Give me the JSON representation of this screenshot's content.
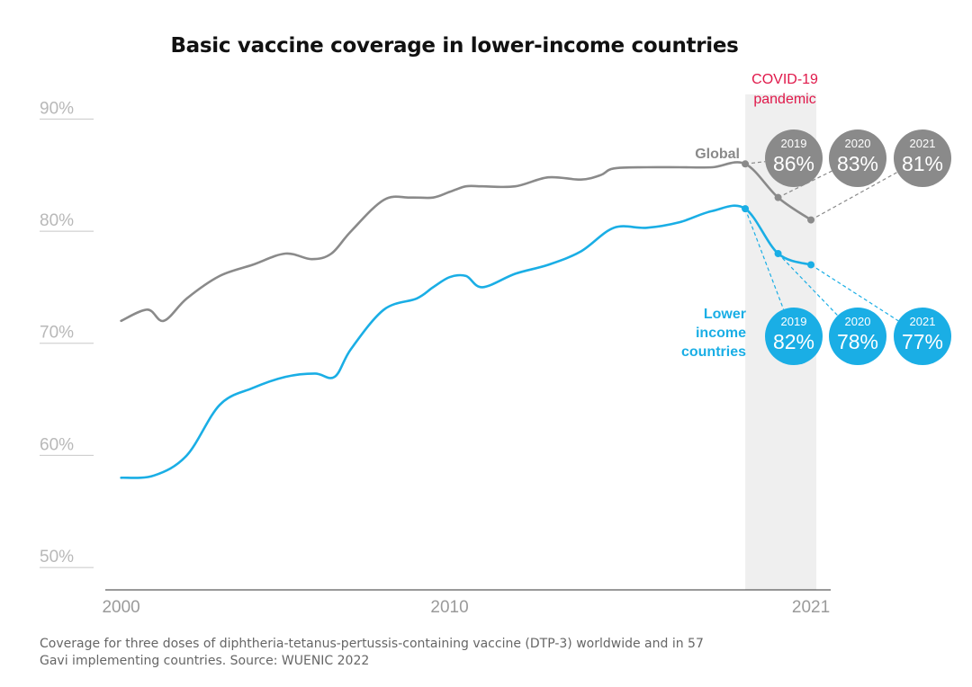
{
  "title": "Basic vaccine coverage in lower-income countries",
  "footnote": "Coverage for three doses of diphtheria-tetanus-pertussis-containing vaccine (DTP-3) worldwide and in 57 Gavi implementing countries. Source: WUENIC 2022",
  "pandemic_label_lines": [
    "COVID-19",
    "pandemic"
  ],
  "colors": {
    "global": "#8a8a8a",
    "lower_income": "#1aaee5",
    "pandemic_text": "#e0184a",
    "pandemic_band": "#efefef",
    "axis_text": "#b8b8b8",
    "bubble_text": "#ffffff"
  },
  "chart_data": {
    "type": "line",
    "title": "Basic vaccine coverage in lower-income countries",
    "xlabel": "",
    "ylabel": "",
    "x_ticks": [
      2000,
      2010,
      2021
    ],
    "y_ticks": [
      {
        "value": 50,
        "label": "50%"
      },
      {
        "value": 60,
        "label": "60%"
      },
      {
        "value": 70,
        "label": "70%"
      },
      {
        "value": 80,
        "label": "80%"
      },
      {
        "value": 90,
        "label": "90%"
      }
    ],
    "xlim": [
      1999.6,
      2021.3
    ],
    "ylim": [
      48,
      93
    ],
    "highlight_period": {
      "start": 2019,
      "end": 2021,
      "label": "COVID-19 pandemic"
    },
    "series": [
      {
        "name": "Global",
        "color_key": "global",
        "label_lines": [
          "Global"
        ],
        "x": [
          2000,
          2000.8,
          2001.3,
          2002,
          2003,
          2004,
          2005,
          2005.8,
          2006.4,
          2007,
          2008,
          2008.8,
          2009.5,
          2010,
          2010.5,
          2011,
          2012,
          2013,
          2014,
          2014.6,
          2015,
          2016,
          2017,
          2018,
          2019,
          2020,
          2021
        ],
        "y": [
          72,
          73,
          72,
          74,
          76,
          77,
          78,
          77.5,
          78,
          80,
          82.8,
          83,
          83,
          83.5,
          84,
          84,
          84,
          84.8,
          84.6,
          85,
          85.6,
          85.7,
          85.7,
          85.7,
          86,
          83,
          81
        ]
      },
      {
        "name": "Lower income countries",
        "color_key": "lower_income",
        "label_lines": [
          "Lower",
          "income",
          "countries"
        ],
        "x": [
          2000,
          2001,
          2002,
          2003,
          2004,
          2005,
          2005.9,
          2006.5,
          2007,
          2008,
          2009,
          2009.5,
          2010,
          2010.5,
          2011,
          2012,
          2013,
          2014,
          2015,
          2016,
          2017,
          2018,
          2019,
          2020,
          2021
        ],
        "y": [
          58,
          58.2,
          60,
          64.5,
          66,
          67,
          67.3,
          67,
          69.5,
          73,
          74,
          75,
          75.9,
          76,
          75,
          76.2,
          77,
          78.2,
          80.3,
          80.3,
          80.8,
          81.8,
          82,
          78,
          77
        ]
      }
    ],
    "annotations": {
      "global": [
        {
          "year": "2019",
          "value": "86%",
          "x": 2019,
          "y": 86
        },
        {
          "year": "2020",
          "value": "83%",
          "x": 2020,
          "y": 83
        },
        {
          "year": "2021",
          "value": "81%",
          "x": 2021,
          "y": 81
        }
      ],
      "lower_income": [
        {
          "year": "2019",
          "value": "82%",
          "x": 2019,
          "y": 82
        },
        {
          "year": "2020",
          "value": "78%",
          "x": 2020,
          "y": 78
        },
        {
          "year": "2021",
          "value": "77%",
          "x": 2021,
          "y": 77
        }
      ]
    }
  }
}
